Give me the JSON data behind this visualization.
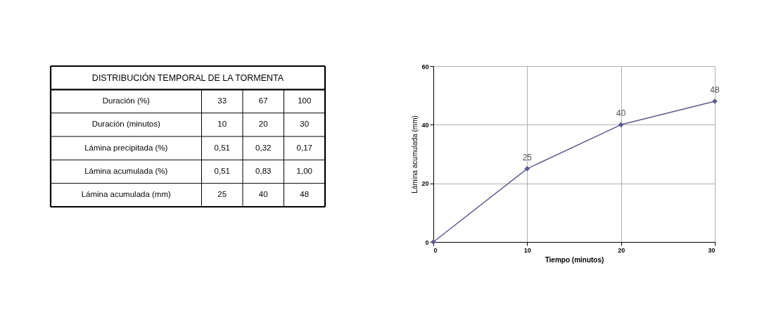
{
  "chart_data": [
    {
      "type": "other",
      "title": "DISTRIBUCIÓN TEMPORAL DE LA TORMENTA",
      "annotations": [
        "Duración (%)",
        "33",
        "67",
        "100",
        "Duración (minutos)",
        "10",
        "20",
        "30",
        "Lámina precipitada  (%)",
        "0,51",
        "0,32",
        "0,17",
        "Lámina acumulada (%)",
        "0,51",
        "0,83",
        "1,00",
        "Lámina acumulada (mm)",
        "25",
        "40",
        "48"
      ]
    },
    {
      "type": "line",
      "xlabel": "Tiempo (minutos)",
      "ylabel": "Lámina acumulada (mm)",
      "x": [
        0,
        10,
        20,
        30
      ],
      "values": [
        0,
        25,
        40,
        48
      ],
      "color": "#5b5b8f",
      "value_labels": [
        null,
        "25",
        "40",
        "48"
      ],
      "xlim": [
        0,
        30
      ],
      "xticks": [
        0,
        10,
        20,
        30
      ],
      "ylim": [
        0,
        60
      ],
      "yticks": [
        0,
        20,
        40,
        60
      ],
      "grid": true,
      "marker": "diamond",
      "line_style": "solid"
    }
  ]
}
